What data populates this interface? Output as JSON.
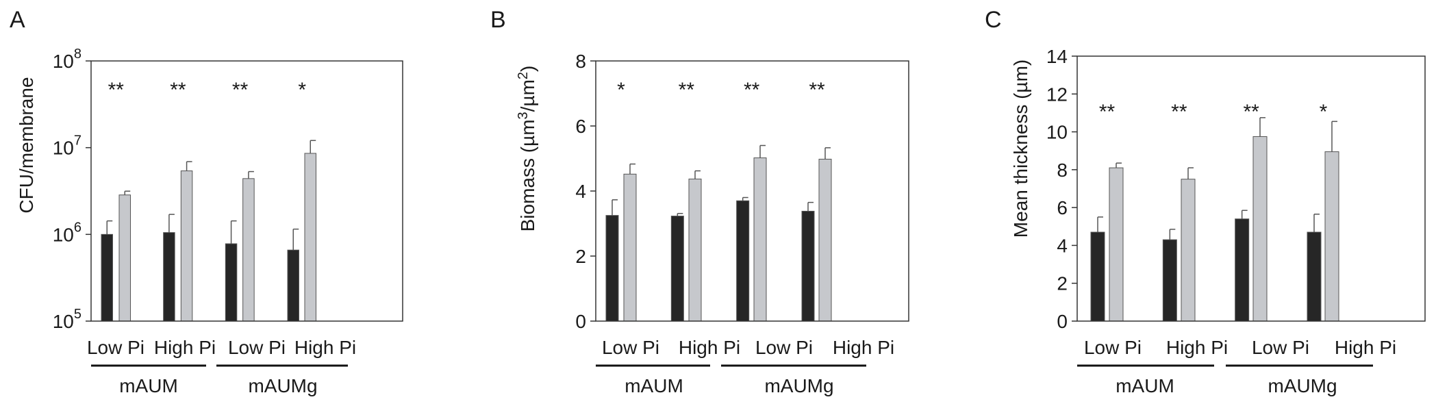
{
  "legend": {
    "series": [
      {
        "color": "#262626"
      },
      {
        "color": "#c6c8cc"
      }
    ]
  },
  "groups": [
    {
      "label": "mAUM"
    },
    {
      "label": "mAUMg"
    }
  ],
  "chart_data": [
    {
      "type": "bar",
      "panel": "A",
      "scale": "log",
      "categories": [
        "Low Pi",
        "High Pi",
        "Low Pi",
        "High Pi"
      ],
      "ylabel": "CFU/membrane",
      "ylim": [
        100000,
        100000000
      ],
      "ticks": [
        {
          "base": "10",
          "exp": "5",
          "value": 100000
        },
        {
          "base": "10",
          "exp": "6",
          "value": 1000000
        },
        {
          "base": "10",
          "exp": "7",
          "value": 10000000
        },
        {
          "base": "10",
          "exp": "8",
          "value": 100000000
        }
      ],
      "series": [
        {
          "values": [
            1000000,
            1050000,
            780000,
            660000
          ],
          "errors": [
            1430000,
            1700000,
            1430000,
            1150000
          ]
        },
        {
          "values": [
            2850000,
            5400000,
            4400000,
            8600000
          ],
          "errors": [
            3150000,
            6900000,
            5300000,
            12100000
          ]
        }
      ],
      "annotations": [
        "**",
        "**",
        "**",
        "*"
      ]
    },
    {
      "type": "bar",
      "panel": "B",
      "scale": "linear",
      "categories": [
        "Low Pi",
        "High Pi",
        "Low Pi",
        "High Pi"
      ],
      "ylabel_parts": {
        "pre": "Biomass (µm",
        "sup1": "3",
        "mid": "/µm",
        "sup2": "2",
        "post": ")"
      },
      "ylim": [
        0,
        8
      ],
      "ticks": [
        {
          "label": "0",
          "value": 0
        },
        {
          "label": "2",
          "value": 2
        },
        {
          "label": "4",
          "value": 4
        },
        {
          "label": "6",
          "value": 6
        },
        {
          "label": "8",
          "value": 8
        }
      ],
      "series": [
        {
          "values": [
            3.25,
            3.23,
            3.7,
            3.38
          ],
          "errors": [
            3.73,
            3.31,
            3.8,
            3.65
          ]
        },
        {
          "values": [
            4.52,
            4.37,
            5.02,
            4.98
          ],
          "errors": [
            4.83,
            4.62,
            5.4,
            5.33
          ]
        }
      ],
      "annotations": [
        "*",
        "**",
        "**",
        "**"
      ]
    },
    {
      "type": "bar",
      "panel": "C",
      "scale": "linear",
      "categories": [
        "Low Pi",
        "High Pi",
        "Low Pi",
        "High Pi"
      ],
      "ylabel": "Mean thickness (µm)",
      "ylim": [
        0,
        14
      ],
      "ticks": [
        {
          "label": "0",
          "value": 0
        },
        {
          "label": "2",
          "value": 2
        },
        {
          "label": "4",
          "value": 4
        },
        {
          "label": "6",
          "value": 6
        },
        {
          "label": "8",
          "value": 8
        },
        {
          "label": "10",
          "value": 10
        },
        {
          "label": "12",
          "value": 12
        },
        {
          "label": "14",
          "value": 14
        }
      ],
      "series": [
        {
          "values": [
            4.7,
            4.3,
            5.4,
            4.7
          ],
          "errors": [
            5.5,
            4.85,
            5.85,
            5.65
          ]
        },
        {
          "values": [
            8.1,
            7.5,
            9.75,
            8.95
          ],
          "errors": [
            8.35,
            8.1,
            10.75,
            10.55
          ]
        }
      ],
      "annotations": [
        "**",
        "**",
        "**",
        "*"
      ]
    }
  ]
}
